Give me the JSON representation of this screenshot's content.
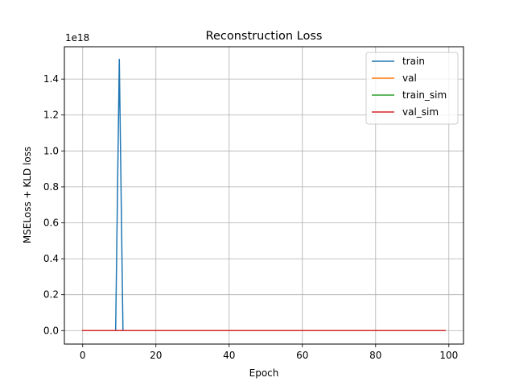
{
  "chart_data": {
    "type": "line",
    "title": "Reconstruction Loss",
    "xlabel": "Epoch",
    "ylabel": "MSELoss + KLD loss",
    "y_offset_label": "1e18",
    "xlim": [
      -5,
      104
    ],
    "ylim": [
      -0.075,
      1.58
    ],
    "y_scale_factor": 1e+18,
    "grid": true,
    "legend_position": "upper right",
    "xticks": [
      0,
      20,
      40,
      60,
      80,
      100
    ],
    "xtick_labels": [
      "0",
      "20",
      "40",
      "60",
      "80",
      "100"
    ],
    "yticks": [
      0.0,
      0.2,
      0.4,
      0.6,
      0.8,
      1.0,
      1.2,
      1.4
    ],
    "ytick_labels": [
      "0.0",
      "0.2",
      "0.4",
      "0.6",
      "0.8",
      "1.0",
      "1.2",
      "1.4"
    ],
    "series": [
      {
        "name": "train",
        "color": "#1f77b4",
        "points": [
          [
            0,
            0
          ],
          [
            9,
            0
          ],
          [
            10,
            1.51
          ],
          [
            11,
            0
          ],
          [
            99,
            0
          ]
        ]
      },
      {
        "name": "val",
        "color": "#ff7f0e",
        "points": [
          [
            0,
            0
          ],
          [
            99,
            0
          ]
        ]
      },
      {
        "name": "train_sim",
        "color": "#2ca02c",
        "points": [
          [
            0,
            0
          ],
          [
            99,
            0
          ]
        ]
      },
      {
        "name": "val_sim",
        "color": "#d62728",
        "points": [
          [
            0,
            0
          ],
          [
            99,
            0
          ]
        ]
      }
    ]
  }
}
